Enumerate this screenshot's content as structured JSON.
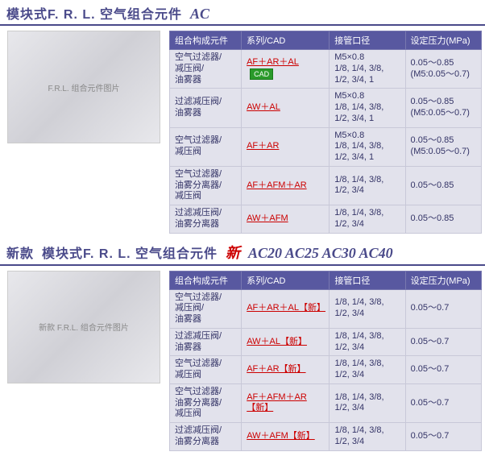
{
  "section1": {
    "title": "模块式F. R. L. 空气组合元件",
    "model": "AC",
    "img_alt": "F.R.L. 组合元件图片",
    "table": {
      "headers": [
        "组合构成元件",
        "系列/CAD",
        "接管口径",
        "设定压力(MPa)"
      ],
      "rows": [
        {
          "components": "空气过滤器/\n减压阀/\n油雾器",
          "series_text": "AF＋AR＋AL",
          "cad": true,
          "port": "M5×0.8\n1/8, 1/4, 3/8,\n1/2, 3/4, 1",
          "pressure": "0.05～0.85\n(M5:0.05～0.7)"
        },
        {
          "components": "过滤减压阀/\n油雾器",
          "series_text": "AW＋AL",
          "cad": false,
          "port": "M5×0.8\n1/8, 1/4, 3/8,\n1/2, 3/4, 1",
          "pressure": "0.05～0.85\n(M5:0.05～0.7)"
        },
        {
          "components": "空气过滤器/\n减压阀",
          "series_text": "AF＋AR",
          "cad": false,
          "port": "M5×0.8\n1/8, 1/4, 3/8,\n1/2, 3/4, 1",
          "pressure": "0.05～0.85\n(M5:0.05～0.7)"
        },
        {
          "components": "空气过滤器/\n油雾分离器/\n减压阀",
          "series_text": "AF＋AFM＋AR",
          "cad": false,
          "port": "1/8, 1/4, 3/8,\n1/2, 3/4",
          "pressure": "0.05～0.85"
        },
        {
          "components": "过滤减压阀/\n油雾分离器",
          "series_text": "AW＋AFM",
          "cad": false,
          "port": "1/8, 1/4, 3/8,\n1/2, 3/4",
          "pressure": "0.05～0.85"
        }
      ]
    }
  },
  "section2": {
    "title_prefix": "新款",
    "title": "模块式F. R. L. 空气组合元件",
    "new_label": "新",
    "models": [
      "AC20",
      "AC25",
      "AC30",
      "AC40"
    ],
    "img_alt": "新款 F.R.L. 组合元件图片",
    "table": {
      "headers": [
        "组合构成元件",
        "系列/CAD",
        "接管口径",
        "设定压力(MPa)"
      ],
      "rows": [
        {
          "components": "空气过滤器/\n减压阀/\n油雾器",
          "series_text": "AF＋AR＋AL【新】",
          "port": "1/8, 1/4, 3/8,\n1/2, 3/4",
          "pressure": "0.05～0.7"
        },
        {
          "components": "过滤减压阀/\n油雾器",
          "series_text": "AW＋AL【新】",
          "port": "1/8, 1/4, 3/8,\n1/2, 3/4",
          "pressure": "0.05～0.7"
        },
        {
          "components": "空气过滤器/\n减压阀",
          "series_text": "AF＋AR【新】",
          "port": "1/8, 1/4, 3/8,\n1/2, 3/4",
          "pressure": "0.05～0.7"
        },
        {
          "components": "空气过滤器/\n油雾分离器/\n减压阀",
          "series_text": "AF＋AFM＋AR【新】",
          "port": "1/8, 1/4, 3/8,\n1/2, 3/4",
          "pressure": "0.05～0.7"
        },
        {
          "components": "过滤减压阀/\n油雾分离器",
          "series_text": "AW＋AFM【新】",
          "port": "1/8, 1/4, 3/8,\n1/2, 3/4",
          "pressure": "0.05～0.7"
        }
      ]
    }
  },
  "style": {
    "header_bg": "#5858a0",
    "header_text": "#ffffff",
    "cell_bg": "#e2e2ec",
    "link_color": "#cc0000",
    "title_color": "#4a4a8a",
    "cad_bg": "#2a9a2a"
  },
  "col_widths": {
    "c0": "90px",
    "c1": "110px",
    "c2": "95px",
    "c3": "95px"
  }
}
